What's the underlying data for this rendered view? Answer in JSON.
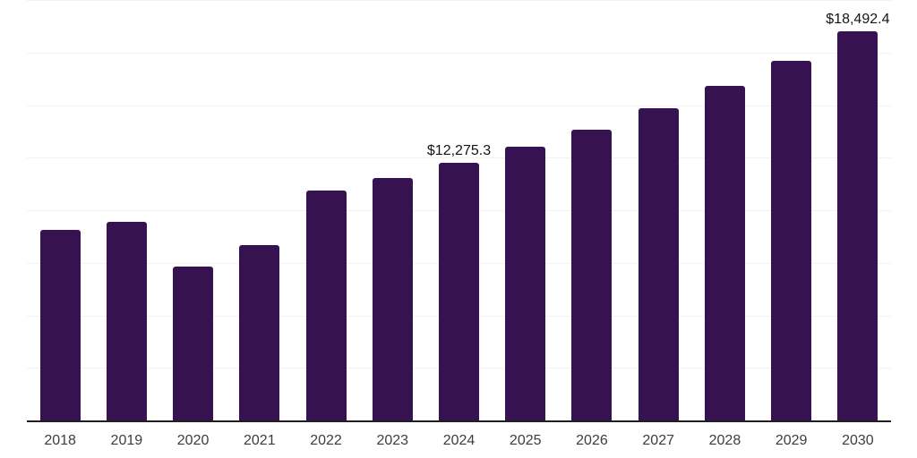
{
  "chart": {
    "colors": {
      "bar": "#371250",
      "grid": "#f2f2f2",
      "axis": "#1f1f1f",
      "tick_label": "#3d3d3d",
      "data_label": "#141414"
    }
  },
  "chart_data": {
    "type": "bar",
    "title": "",
    "xlabel": "",
    "ylabel": "",
    "categories": [
      "2018",
      "2019",
      "2020",
      "2021",
      "2022",
      "2023",
      "2024",
      "2025",
      "2026",
      "2027",
      "2028",
      "2029",
      "2030"
    ],
    "values": [
      9080,
      9450,
      7310,
      8330,
      10930,
      11550,
      12275.3,
      13010,
      13850,
      14870,
      15910,
      17100,
      18492.4
    ],
    "data_labels": [
      "",
      "",
      "",
      "",
      "",
      "",
      "$12,275.3",
      "",
      "",
      "",
      "",
      "",
      "$18,492.4"
    ],
    "ylim": [
      0,
      20000
    ],
    "grid_step": 2500,
    "grid": true,
    "legend": false,
    "y_tick_labels_visible": false
  }
}
